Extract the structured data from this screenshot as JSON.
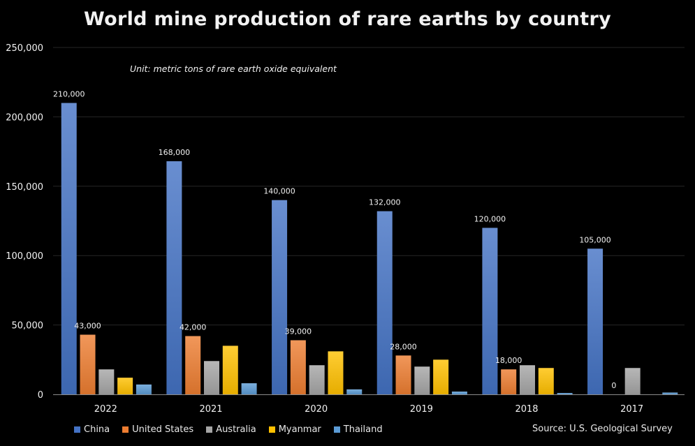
{
  "chart_data": {
    "type": "bar",
    "title": "World mine production of rare earths by country",
    "subtitle": "Unit: metric tons of rare earth oxide equivalent",
    "source": "Source: U.S. Geological Survey",
    "xlabel": "",
    "ylabel": "",
    "ylim": [
      0,
      250000
    ],
    "yticks": [
      0,
      50000,
      100000,
      150000,
      200000,
      250000
    ],
    "ytick_labels": [
      "0",
      "50,000",
      "100,000",
      "150,000",
      "200,000",
      "250,000"
    ],
    "grid": true,
    "legend_position": "bottom-left",
    "categories": [
      "2022",
      "2021",
      "2020",
      "2019",
      "2018",
      "2017"
    ],
    "series": [
      {
        "name": "China",
        "color": "#4472C4",
        "values": [
          210000,
          168000,
          140000,
          132000,
          120000,
          105000
        ],
        "labels": [
          "210,000",
          "168,000",
          "140,000",
          "132,000",
          "120,000",
          "105,000"
        ]
      },
      {
        "name": "United States",
        "color": "#ED7D31",
        "values": [
          43000,
          42000,
          39000,
          28000,
          18000,
          0
        ],
        "labels": [
          "43,000",
          "42,000",
          "39,000",
          "28,000",
          "18,000",
          "0"
        ]
      },
      {
        "name": "Australia",
        "color": "#A5A5A5",
        "values": [
          18000,
          24000,
          21000,
          20000,
          21000,
          19000
        ],
        "labels": null
      },
      {
        "name": "Myanmar",
        "color": "#FFC000",
        "values": [
          12000,
          35000,
          31000,
          25000,
          19000,
          0
        ],
        "labels": null
      },
      {
        "name": "Thailand",
        "color": "#5B9BD5",
        "values": [
          7100,
          8000,
          3600,
          2000,
          1000,
          1300
        ],
        "labels": null
      }
    ]
  }
}
